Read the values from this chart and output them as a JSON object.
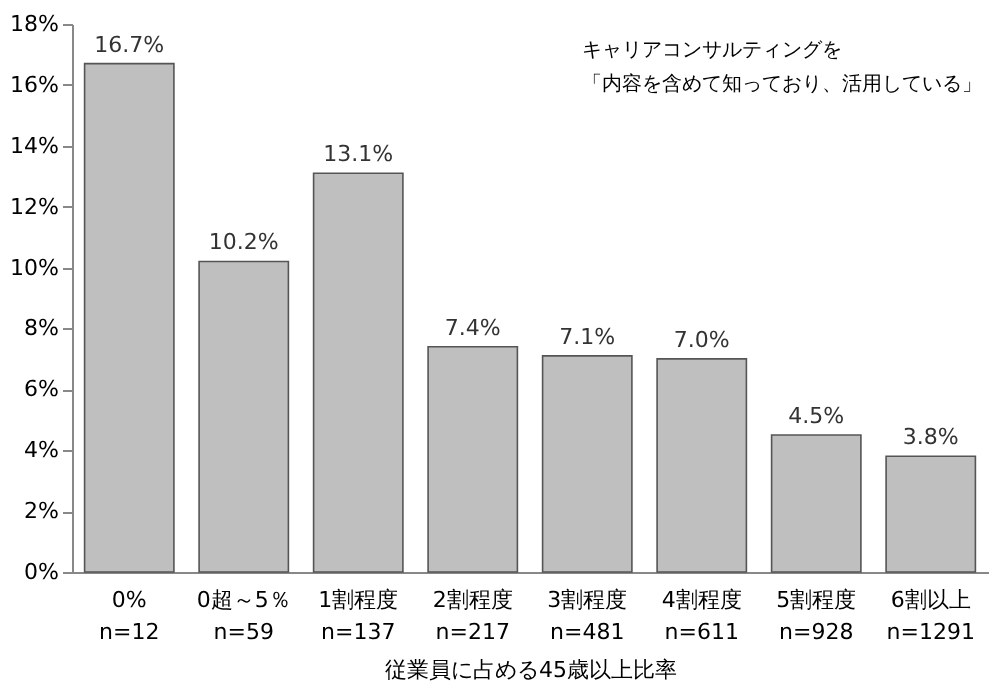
{
  "chart_data": {
    "type": "bar",
    "categories": [
      "0%\nn=12",
      "0超～5％\nn=59",
      "1割程度\nn=137",
      "2割程度\nn=217",
      "3割程度\nn=481",
      "4割程度\nn=611",
      "5割程度\nn=928",
      "6割以上\nn=1291"
    ],
    "values": [
      16.7,
      10.2,
      13.1,
      7.4,
      7.1,
      7.0,
      4.5,
      3.8
    ],
    "value_labels": [
      "16.7%",
      "10.2%",
      "13.1%",
      "7.4%",
      "7.1%",
      "7.0%",
      "4.5%",
      "3.8%"
    ],
    "color": "#bfbfbf",
    "xlabel": "従業員に占める45歳以上比率",
    "annotations": [
      "キャリアコンサルティングを",
      "「内容を含めて知っており、活用している」"
    ],
    "ylim": [
      0,
      18
    ],
    "yticks": [
      {
        "value": 0,
        "label": "0%"
      },
      {
        "value": 2,
        "label": "2%"
      },
      {
        "value": 4,
        "label": "4%"
      },
      {
        "value": 6,
        "label": "6%"
      },
      {
        "value": 8,
        "label": "8%"
      },
      {
        "value": 10,
        "label": "10%"
      },
      {
        "value": 12,
        "label": "12%"
      },
      {
        "value": 14,
        "label": "14%"
      },
      {
        "value": 16,
        "label": "16%"
      },
      {
        "value": 18,
        "label": "18%"
      }
    ],
    "grid": false
  }
}
